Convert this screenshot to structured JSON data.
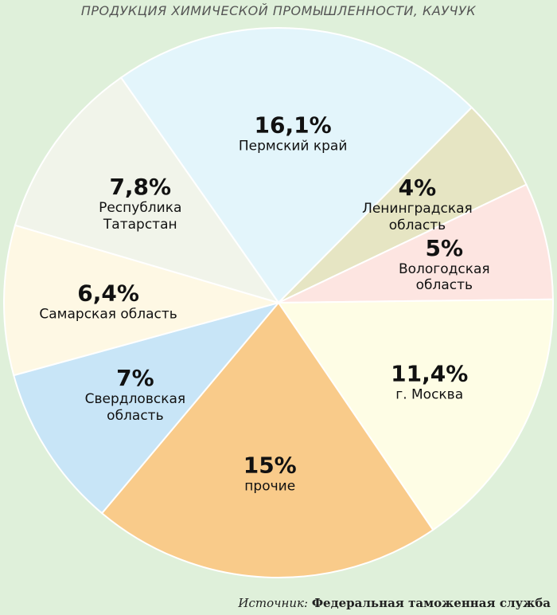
{
  "chart_data": {
    "type": "pie",
    "title": "ПРОДУКЦИЯ ХИМИЧЕСКОЙ ПРОМЫШЛЕННОСТИ, КАУЧУК",
    "categories": [
      "Пермский край",
      "Ленинградская область",
      "Вологодская область",
      "г. Москва",
      "прочие",
      "Свердловская область",
      "Самарская область",
      "Республика Татарстан"
    ],
    "values": [
      16.1,
      4,
      5,
      11.4,
      15,
      7,
      6.4,
      7.8
    ],
    "value_labels": [
      "16,1%",
      "4%",
      "5%",
      "11,4%",
      "15%",
      "7%",
      "6,4%",
      "7,8%"
    ],
    "colors": [
      "#e3f5fb",
      "#e6e5c3",
      "#fde5e1",
      "#fefde5",
      "#f9cb8a",
      "#c8e5f7",
      "#fef8e4",
      "#f1f4ea"
    ],
    "source": {
      "label": "Источник:",
      "text": "Федеральная таможенная служба"
    }
  }
}
